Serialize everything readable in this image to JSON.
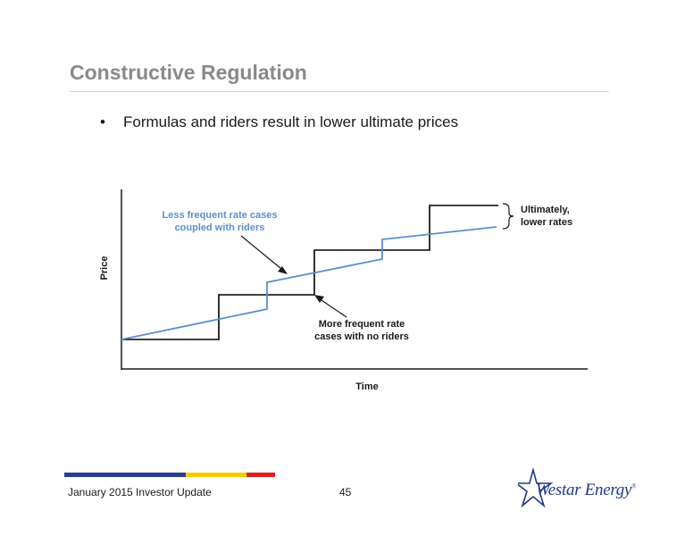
{
  "slide": {
    "title": "Constructive Regulation",
    "bullets": [
      {
        "marker": "•",
        "text": "Formulas and riders result in lower ultimate prices"
      }
    ]
  },
  "diagram": {
    "y_axis_label": "Price",
    "x_axis_label": "Time",
    "annotations": {
      "blue_line_label": [
        "Less frequent rate cases",
        "coupled with riders"
      ],
      "black_line_label": [
        "More frequent rate",
        "cases with no riders"
      ],
      "bracket_label": [
        "Ultimately,",
        "lower rates"
      ]
    },
    "colors": {
      "black_line": "#000000",
      "blue_line": "#5b8fd0",
      "axis": "#1a1a1a"
    }
  },
  "footer": {
    "left_text": "January 2015 Investor Update",
    "page_number": "45",
    "bar_colors": [
      "#2b3d98",
      "#f6cc00",
      "#e02020"
    ]
  },
  "logo": {
    "text": "Westar Energy",
    "mark": "®",
    "icon": "star-icon",
    "color": "#1f3a86"
  }
}
